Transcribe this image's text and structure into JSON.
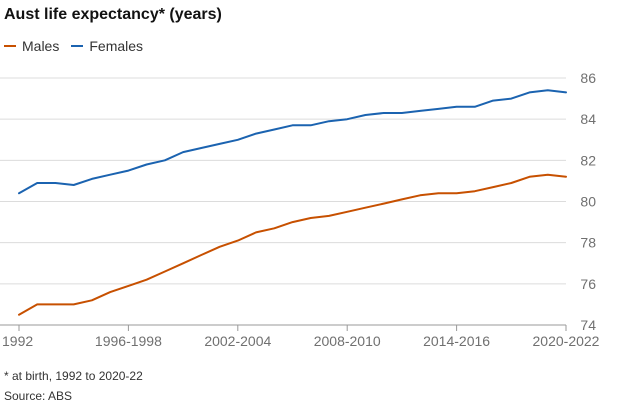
{
  "chart_data": {
    "type": "line",
    "title": "Aust life expectancy* (years)",
    "xlabel": "",
    "ylabel": "",
    "x_ticks": [
      "1992",
      "1996-1998",
      "2002-2004",
      "2008-2010",
      "2014-2016",
      "2020-2022"
    ],
    "y_ticks": [
      "86",
      "84",
      "82",
      "80",
      "78",
      "76",
      "74"
    ],
    "ylim": [
      74,
      86
    ],
    "grid": true,
    "legend_position": "top-left",
    "series": [
      {
        "name": "Males",
        "color": "#c75000",
        "values": [
          74.5,
          75.0,
          75.0,
          75.0,
          75.2,
          75.6,
          75.9,
          76.2,
          76.6,
          77.0,
          77.4,
          77.8,
          78.1,
          78.5,
          78.7,
          79.0,
          79.2,
          79.3,
          79.5,
          79.7,
          79.9,
          80.1,
          80.3,
          80.4,
          80.4,
          80.5,
          80.7,
          80.9,
          81.2,
          81.3,
          81.2
        ]
      },
      {
        "name": "Females",
        "color": "#1b63b0",
        "values": [
          80.4,
          80.9,
          80.9,
          80.8,
          81.1,
          81.3,
          81.5,
          81.8,
          82.0,
          82.4,
          82.6,
          82.8,
          83.0,
          83.3,
          83.5,
          83.7,
          83.7,
          83.9,
          84.0,
          84.2,
          84.3,
          84.3,
          84.4,
          84.5,
          84.6,
          84.6,
          84.9,
          85.0,
          85.3,
          85.4,
          85.3
        ]
      }
    ],
    "footnote": "* at birth, 1992 to 2020-22",
    "source": "Source: ABS"
  }
}
